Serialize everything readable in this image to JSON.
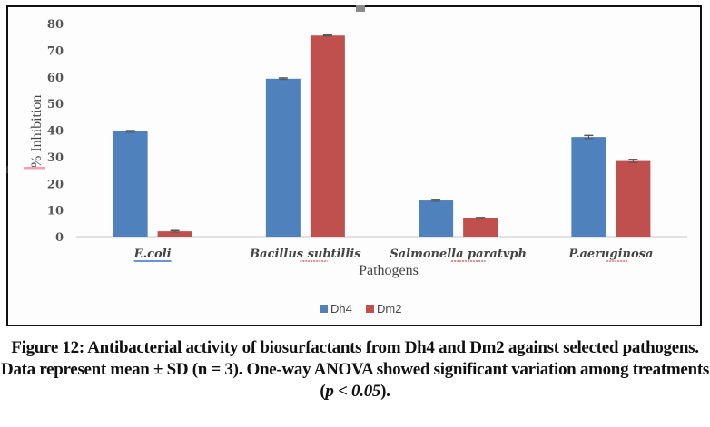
{
  "chart_data": {
    "type": "bar",
    "title": "",
    "xlabel": "Pathogens",
    "ylabel": "% Inhibition",
    "ylim": [
      0,
      80
    ],
    "yticks": [
      0,
      10,
      20,
      30,
      40,
      50,
      60,
      70,
      80
    ],
    "ytick_labels": [
      "0",
      "10",
      "20",
      "30",
      "40",
      "50",
      "60",
      "70",
      "80"
    ],
    "categories": [
      "E.coli",
      "Bacillus subtillis",
      "Salmonella paratyphi",
      "P.aeruginosa"
    ],
    "category_display": [
      "E.coli",
      "Bacillus subtillis",
      "Salmonella paratvph",
      "P.aeruginosa"
    ],
    "series": [
      {
        "name": "Dh4",
        "color": "#4f81bd",
        "values": [
          39.5,
          59.3,
          13.6,
          37.4
        ],
        "errors": [
          0.3,
          0.3,
          0.3,
          0.6
        ]
      },
      {
        "name": "Dm2",
        "color": "#c0504d",
        "values": [
          2.0,
          75.5,
          7.0,
          28.4
        ],
        "errors": [
          0.3,
          0.2,
          0.2,
          0.6
        ]
      }
    ],
    "legend": {
      "position": "bottom-center",
      "entries": [
        "Dh4",
        "Dm2"
      ]
    },
    "grid": false
  },
  "caption": {
    "prefix": "Figure 12: Antibacterial activity of biosurfactants from Dh4 and Dm2 against selected pathogens. Data represent mean ± SD (n = 3). One-way ANOVA showed significant variation among treatments (",
    "p_text": "p < 0.05",
    "suffix": ")."
  }
}
